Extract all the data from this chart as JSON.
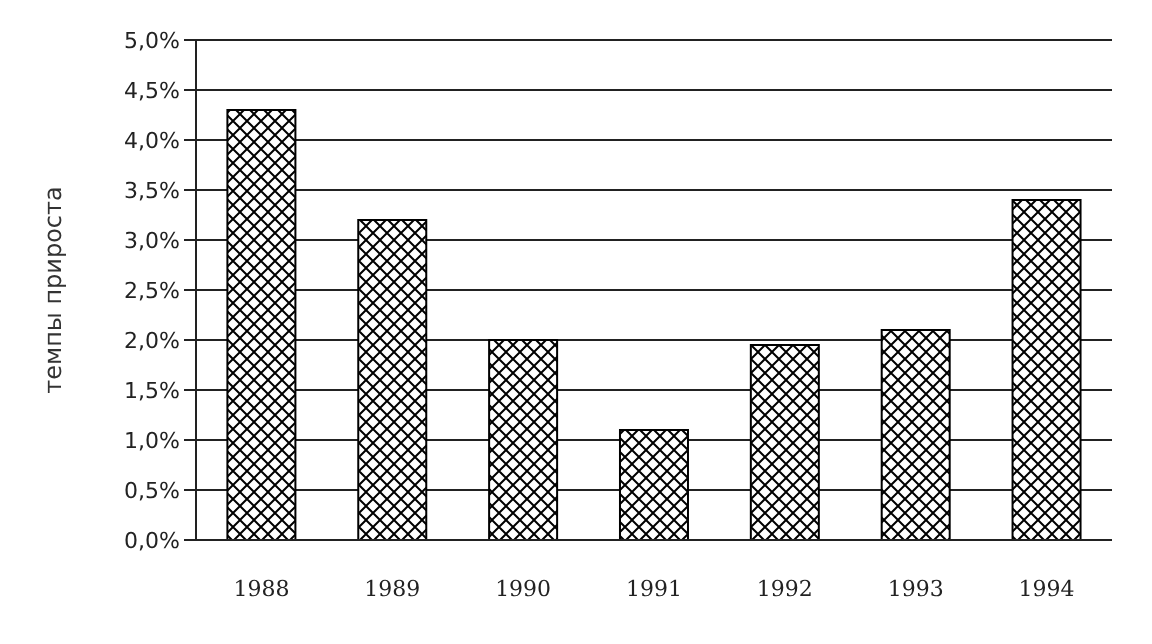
{
  "chart_data": {
    "type": "bar",
    "ylabel": "темпы прироста",
    "categories": [
      "1988",
      "1989",
      "1990",
      "1991",
      "1992",
      "1993",
      "1994"
    ],
    "values": [
      4.3,
      3.2,
      2.0,
      1.1,
      1.95,
      2.1,
      3.4
    ],
    "color": "#000000",
    "ylim": [
      0,
      5
    ],
    "yticks": [
      {
        "value": 0,
        "label": "0,0%"
      },
      {
        "value": 0.5,
        "label": "0,5%"
      },
      {
        "value": 1,
        "label": "1,0%"
      },
      {
        "value": 1.5,
        "label": "1,5%"
      },
      {
        "value": 2,
        "label": "2,0%"
      },
      {
        "value": 2.5,
        "label": "2,5%"
      },
      {
        "value": 3,
        "label": "3,0%"
      },
      {
        "value": 3.5,
        "label": "3,5%"
      },
      {
        "value": 4,
        "label": "4,0%"
      },
      {
        "value": 4.5,
        "label": "4,5%"
      },
      {
        "value": 5,
        "label": "5,0%"
      }
    ],
    "grid": "y"
  }
}
